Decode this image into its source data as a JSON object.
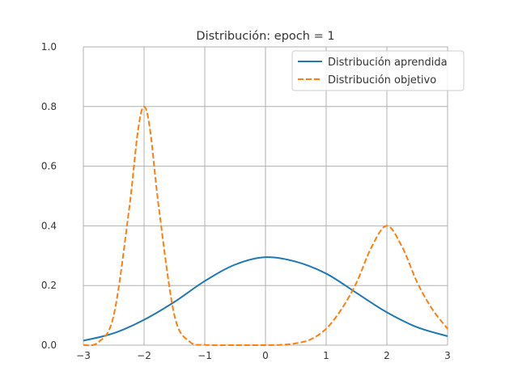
{
  "chart_data": {
    "type": "line",
    "title": "Distribución: epoch = 1",
    "xlabel": "",
    "ylabel": "",
    "xlim": [
      -3,
      3
    ],
    "ylim": [
      0,
      1.0
    ],
    "xticks": [
      -3,
      -2,
      -1,
      0,
      1,
      2,
      3
    ],
    "xtick_labels": [
      "−3",
      "−2",
      "−1",
      "0",
      "1",
      "2",
      "3"
    ],
    "yticks": [
      0,
      0.2,
      0.4,
      0.6,
      0.8,
      1.0
    ],
    "ytick_labels": [
      "0.0",
      "0.2",
      "0.4",
      "0.6",
      "0.8",
      "1.0"
    ],
    "grid": true,
    "legend_position": "top-right",
    "series": [
      {
        "name": "Distribución aprendida",
        "color": "#1f77b4",
        "style": "solid",
        "x": [
          -3.0,
          -2.5,
          -2.0,
          -1.5,
          -1.0,
          -0.5,
          0.0,
          0.5,
          1.0,
          1.5,
          2.0,
          2.5,
          3.0
        ],
        "y": [
          0.015,
          0.04,
          0.085,
          0.145,
          0.215,
          0.27,
          0.295,
          0.28,
          0.24,
          0.175,
          0.11,
          0.06,
          0.03
        ]
      },
      {
        "name": "Distribución objetivo",
        "color": "#ff7f0e",
        "style": "dashed",
        "x": [
          -3.0,
          -2.75,
          -2.5,
          -2.25,
          -2.1,
          -2.0,
          -1.9,
          -1.75,
          -1.5,
          -1.25,
          -1.0,
          -0.5,
          0.0,
          0.25,
          0.5,
          0.75,
          1.0,
          1.25,
          1.5,
          1.75,
          2.0,
          2.25,
          2.5,
          2.75,
          3.0
        ],
        "y": [
          0.0,
          0.01,
          0.1,
          0.45,
          0.72,
          0.8,
          0.72,
          0.45,
          0.1,
          0.012,
          0.001,
          0.0,
          0.0,
          0.001,
          0.006,
          0.02,
          0.055,
          0.12,
          0.21,
          0.33,
          0.4,
          0.33,
          0.21,
          0.12,
          0.055
        ]
      }
    ]
  }
}
